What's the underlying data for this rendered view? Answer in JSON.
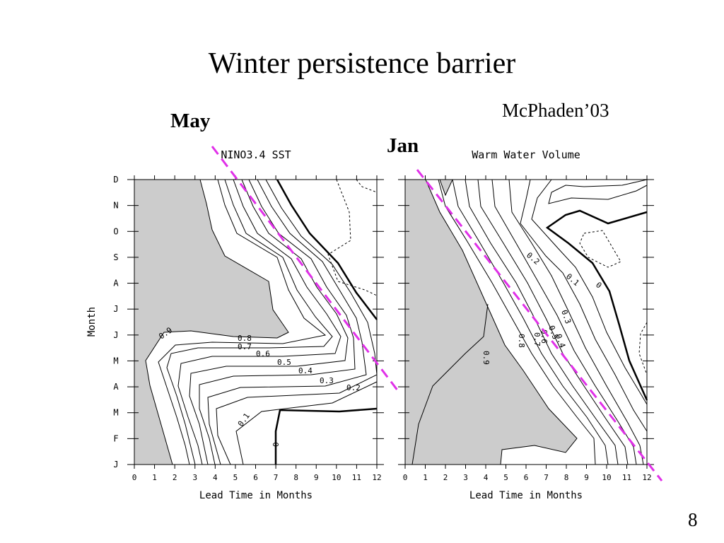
{
  "slide": {
    "title": "Winter persistence barrier",
    "may_label": "May",
    "jan_label": "Jan",
    "citation": "McPhaden’03",
    "page_number": "8"
  },
  "chart_data": [
    {
      "type": "contour",
      "title": "NINO3.4 SST",
      "xlabel": "Lead Time in Months",
      "ylabel": "Month",
      "x_ticks": [
        "0",
        "1",
        "2",
        "3",
        "4",
        "5",
        "6",
        "7",
        "8",
        "9",
        "10",
        "11",
        "12"
      ],
      "y_ticks": [
        "J",
        "F",
        "M",
        "A",
        "M",
        "J",
        "J",
        "A",
        "S",
        "O",
        "N",
        "D"
      ],
      "xlim": [
        0,
        12
      ],
      "contour_levels": [
        "0.9",
        "0.8",
        "0.7",
        "0.6",
        "0.5",
        "0.4",
        "0.3",
        "0.2",
        "0.1",
        "0"
      ],
      "shaded_region": "correlation > 0.9",
      "barrier_line": {
        "start_month": "May",
        "slope_lead_per_month": 1
      }
    },
    {
      "type": "contour",
      "title": "Warm Water Volume",
      "xlabel": "Lead Time in Months",
      "x_ticks": [
        "0",
        "1",
        "2",
        "3",
        "4",
        "5",
        "6",
        "7",
        "8",
        "9",
        "10",
        "11",
        "12"
      ],
      "y_ticks": [
        "J",
        "F",
        "M",
        "A",
        "M",
        "J",
        "J",
        "A",
        "S",
        "O",
        "N",
        "D"
      ],
      "xlim": [
        0,
        12
      ],
      "contour_levels": [
        "0.9",
        "0.8",
        "0.7",
        "0.6",
        "0.5",
        "0.4",
        "0.3",
        "0.2",
        "0.1",
        "0"
      ],
      "shaded_region": "correlation > 0.9",
      "barrier_line": {
        "start_month": "Jan",
        "slope_lead_per_month": 1
      }
    }
  ]
}
